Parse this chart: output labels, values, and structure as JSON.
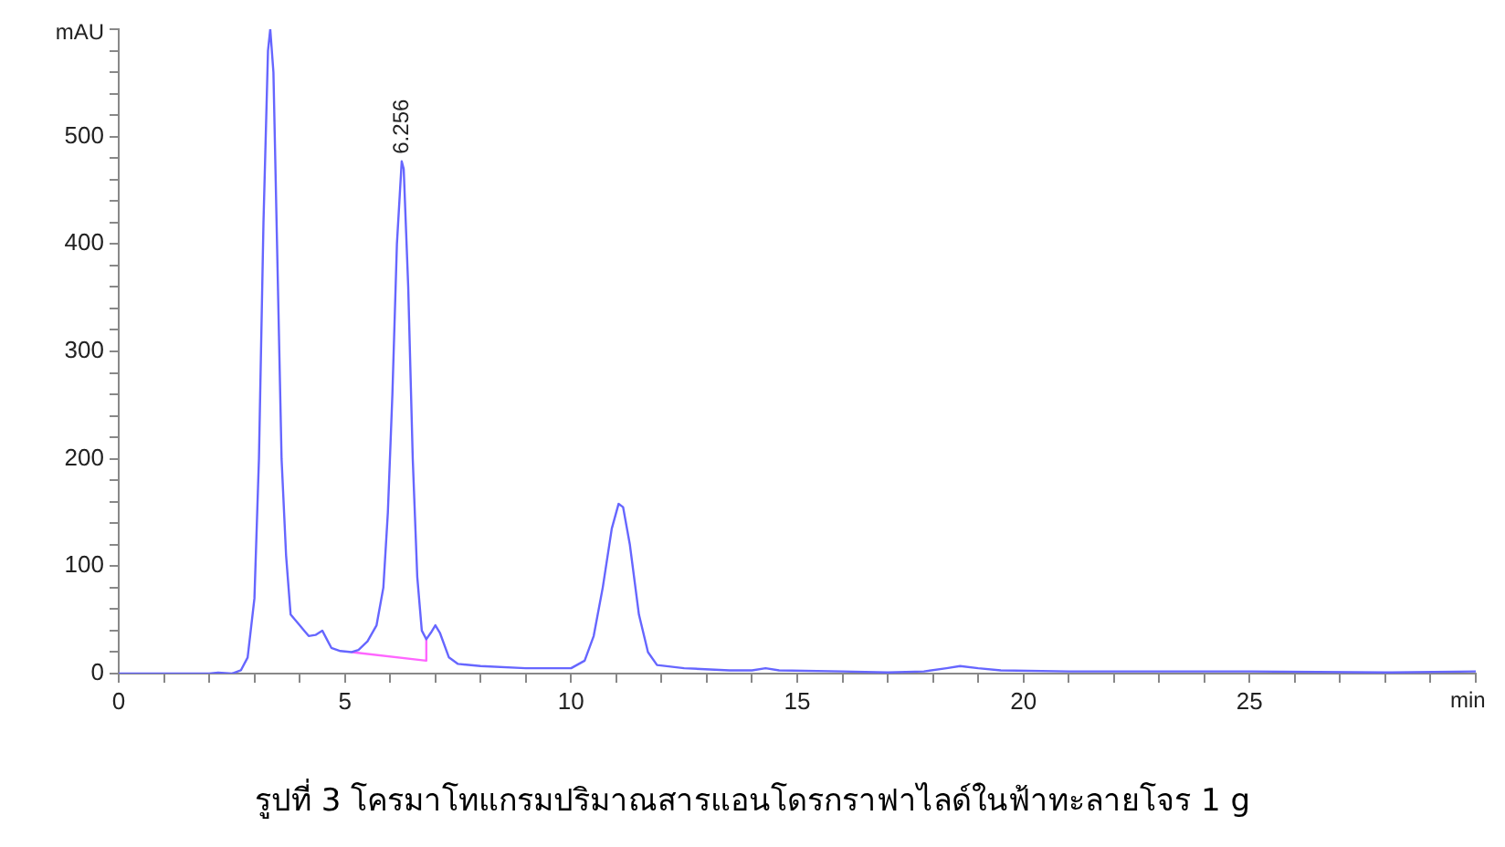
{
  "chart_data": {
    "type": "line",
    "title": "รูปที่ 3 โครมาโทแกรมปริมาณสารแอนโดรกราฟาไลด์ในฟ้าทะลายโจร 1 g",
    "xlabel": "min",
    "ylabel": "mAU",
    "xlim": [
      0,
      30
    ],
    "ylim": [
      0,
      600
    ],
    "xticks": [
      0,
      {
        "value": 1,
        "label": null
      },
      {
        "value": 2,
        "label": null
      },
      {
        "value": 3,
        "label": null
      },
      {
        "value": 4,
        "label": null
      },
      5,
      {
        "value": 6,
        "label": null
      },
      {
        "value": 7,
        "label": null
      },
      {
        "value": 8,
        "label": null
      },
      {
        "value": 9,
        "label": null
      },
      10,
      {
        "value": 11,
        "label": null
      },
      {
        "value": 12,
        "label": null
      },
      {
        "value": 13,
        "label": null
      },
      {
        "value": 14,
        "label": null
      },
      15,
      {
        "value": 16,
        "label": null
      },
      {
        "value": 17,
        "label": null
      },
      {
        "value": 18,
        "label": null
      },
      {
        "value": 19,
        "label": null
      },
      20,
      {
        "value": 21,
        "label": null
      },
      {
        "value": 22,
        "label": null
      },
      {
        "value": 23,
        "label": null
      },
      {
        "value": 24,
        "label": null
      },
      25,
      {
        "value": 26,
        "label": null
      },
      {
        "value": 27,
        "label": null
      },
      {
        "value": 28,
        "label": null
      },
      {
        "value": 29,
        "label": null
      },
      {
        "value": 30,
        "label": null
      }
    ],
    "yticks": [
      0,
      {
        "value": 20,
        "label": null
      },
      {
        "value": 40,
        "label": null
      },
      {
        "value": 60,
        "label": null
      },
      {
        "value": 80,
        "label": null
      },
      100,
      {
        "value": 120,
        "label": null
      },
      {
        "value": 140,
        "label": null
      },
      {
        "value": 160,
        "label": null
      },
      {
        "value": 180,
        "label": null
      },
      200,
      {
        "value": 220,
        "label": null
      },
      {
        "value": 240,
        "label": null
      },
      {
        "value": 260,
        "label": null
      },
      {
        "value": 280,
        "label": null
      },
      300,
      {
        "value": 320,
        "label": null
      },
      {
        "value": 340,
        "label": null
      },
      {
        "value": 360,
        "label": null
      },
      {
        "value": 380,
        "label": null
      },
      400,
      {
        "value": 420,
        "label": null
      },
      {
        "value": 440,
        "label": null
      },
      {
        "value": 460,
        "label": null
      },
      {
        "value": 480,
        "label": null
      },
      500,
      {
        "value": 520,
        "label": null
      },
      {
        "value": 540,
        "label": null
      },
      {
        "value": 560,
        "label": null
      },
      {
        "value": 580,
        "label": null
      },
      {
        "value": 600,
        "label": null
      }
    ],
    "grid": false,
    "legend": false,
    "marker": "none",
    "line_style": "solid",
    "series": [
      {
        "color": "#6666ff",
        "x": [
          0,
          2.0,
          2.2,
          2.5,
          2.7,
          2.85,
          3.0,
          3.1,
          3.2,
          3.3,
          3.35,
          3.42,
          3.5,
          3.6,
          3.7,
          3.8,
          4.0,
          4.1,
          4.2,
          4.35,
          4.5,
          4.6,
          4.7,
          4.9,
          5.15,
          5.3,
          5.5,
          5.7,
          5.85,
          5.95,
          6.05,
          6.15,
          6.256,
          6.3,
          6.4,
          6.5,
          6.6,
          6.7,
          6.8,
          6.9,
          7.0,
          7.1,
          7.3,
          7.5,
          8,
          9,
          9.5,
          10,
          10.3,
          10.5,
          10.7,
          10.9,
          11.05,
          11.15,
          11.3,
          11.5,
          11.7,
          11.9,
          12.5,
          13.5,
          14.0,
          14.3,
          14.6,
          16,
          17,
          17.8,
          18.3,
          18.6,
          19,
          19.5,
          21,
          25,
          28,
          30
        ],
        "values": [
          0,
          0,
          1,
          0,
          3,
          15,
          70,
          200,
          420,
          580,
          600,
          560,
          400,
          200,
          110,
          55,
          45,
          40,
          35,
          36,
          40,
          32,
          24,
          21,
          20,
          22,
          30,
          45,
          80,
          150,
          260,
          400,
          477,
          470,
          360,
          200,
          90,
          40,
          32,
          38,
          45,
          38,
          15,
          9,
          7,
          5,
          5,
          5,
          12,
          35,
          80,
          135,
          158,
          155,
          120,
          55,
          20,
          8,
          5,
          3,
          3,
          5,
          3,
          2,
          1,
          2,
          5,
          7,
          5,
          3,
          2,
          2,
          1,
          2
        ]
      },
      {
        "color": "#ff66ff",
        "x": [
          5.15,
          6.8,
          6.8
        ],
        "values": [
          20,
          12,
          32
        ]
      }
    ],
    "annotations": [
      {
        "text": "6.256",
        "x": 6.256,
        "y": 477
      }
    ]
  }
}
